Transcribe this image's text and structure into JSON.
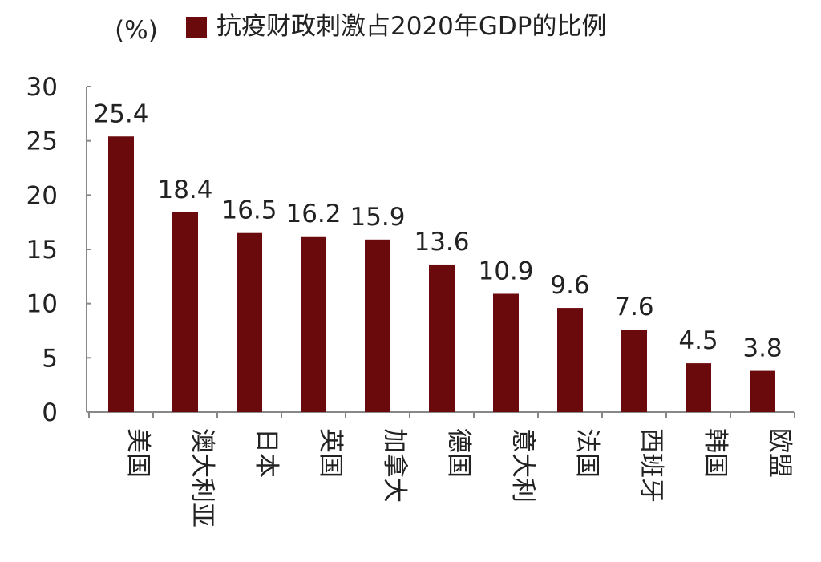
{
  "chart_data": {
    "type": "bar",
    "title": "",
    "unit_label": "(%)",
    "legend": [
      {
        "name": "抗疫财政刺激占2020年GDP的比例",
        "color": "#6b0a0d"
      }
    ],
    "categories": [
      "美国",
      "澳大利亚",
      "日本",
      "英国",
      "加拿大",
      "德国",
      "意大利",
      "法国",
      "西班牙",
      "韩国",
      "欧盟"
    ],
    "series": [
      {
        "name": "抗疫财政刺激占2020年GDP的比例",
        "values": [
          25.4,
          18.4,
          16.5,
          16.2,
          15.9,
          13.6,
          10.9,
          9.6,
          7.6,
          4.5,
          3.8
        ],
        "labels": [
          "25.4",
          "18.4",
          "16.5",
          "16.2",
          "15.9",
          "13.6",
          "10.9",
          "9.6",
          "7.6",
          "4.5",
          "3.8"
        ]
      }
    ],
    "ylim": [
      0,
      30
    ],
    "yticks": [
      "0",
      "5",
      "10",
      "15",
      "20",
      "25",
      "30"
    ],
    "grid": false,
    "legend_position": "top",
    "bar_color": "#6b0a0d",
    "axis_color": "#888888"
  }
}
